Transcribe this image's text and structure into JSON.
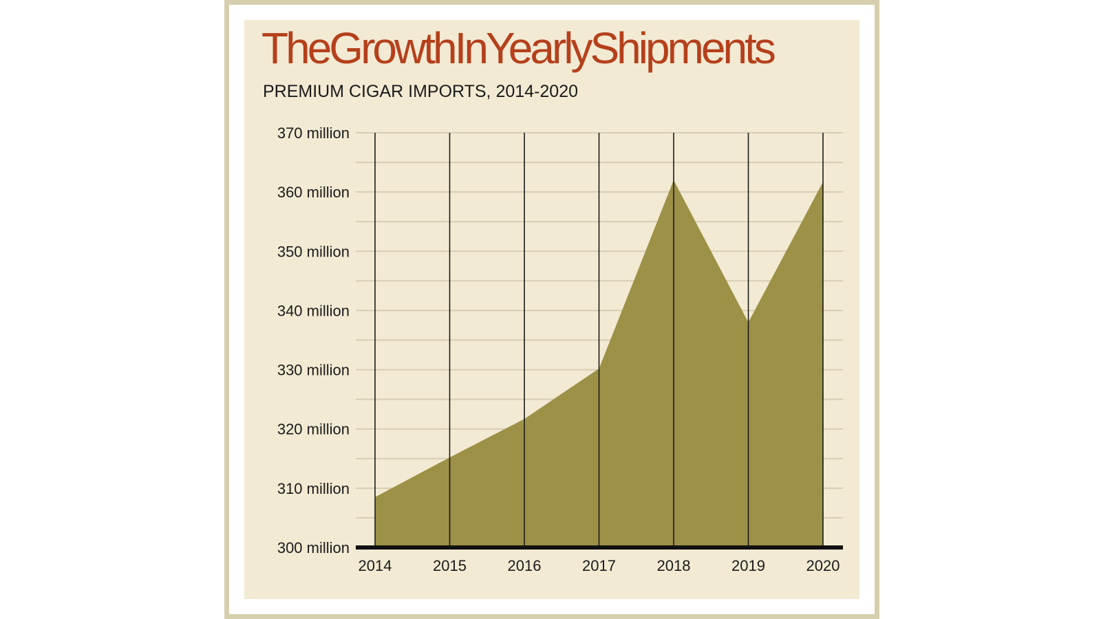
{
  "chart_data": {
    "type": "area",
    "title": "TheGrowthInYearlyShipments",
    "subtitle": "PREMIUM CIGAR IMPORTS, 2014-2020",
    "x": [
      "2014",
      "2015",
      "2016",
      "2017",
      "2018",
      "2019",
      "2020"
    ],
    "values": [
      308.5,
      315.2,
      321.7,
      330.2,
      362.0,
      338.0,
      361.7
    ],
    "unit": "million",
    "ylim": [
      300,
      370
    ],
    "yticks": [
      300,
      310,
      320,
      330,
      340,
      350,
      360,
      370
    ],
    "ytick_labels": [
      "300 million",
      "310 million",
      "320 million",
      "330 million",
      "340 million",
      "350 million",
      "360 million",
      "370 million"
    ],
    "minor_grid_step": 5,
    "grid": true,
    "legend": "none",
    "colors": {
      "area": "#9d9147",
      "title": "#b5401c",
      "panel": "#f3ead4",
      "frame": "#d6cfae",
      "gridline": "#d6cdb2",
      "axis": "#111111"
    }
  }
}
